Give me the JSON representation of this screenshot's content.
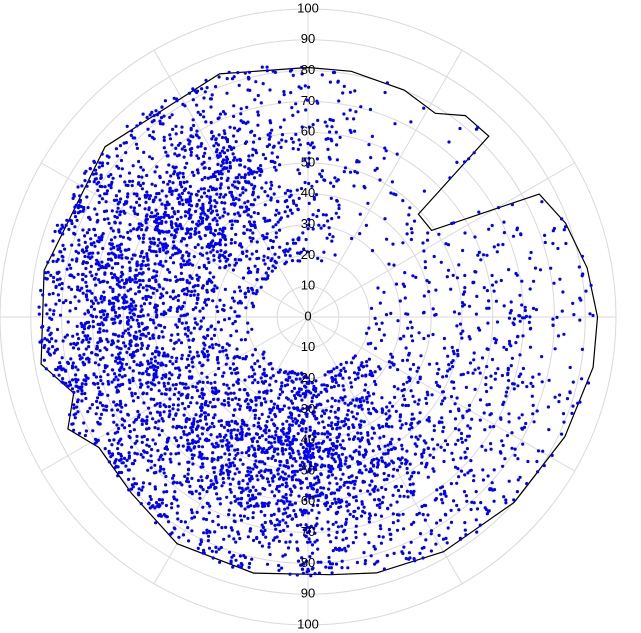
{
  "chart_data": {
    "type": "scatter",
    "coordinate_system": "polar",
    "radial_axis": {
      "range": [
        0,
        100
      ],
      "tick_step": 10,
      "tick_labels_upper": [
        "0",
        "10",
        "20",
        "30",
        "40",
        "50",
        "60",
        "70",
        "80",
        "90",
        "100"
      ],
      "tick_labels_lower": [
        "10",
        "20",
        "30",
        "40",
        "50",
        "60",
        "70",
        "80",
        "90",
        "100"
      ]
    },
    "angular_grid_step_deg": 30,
    "grid": true,
    "series": [
      {
        "marker_color": "#0000ff",
        "point_count_estimate": 4800,
        "clusters": [
          {
            "theta_deg": 131,
            "theta_spread_deg": 28,
            "r_center": 52,
            "r_spread": 18,
            "weight": 0.24
          },
          {
            "theta_deg": 172,
            "theta_spread_deg": 24,
            "r_center": 68,
            "r_spread": 14,
            "weight": 0.16
          },
          {
            "theta_deg": 215,
            "theta_spread_deg": 32,
            "r_center": 57,
            "r_spread": 17,
            "weight": 0.22
          },
          {
            "theta_deg": 270,
            "theta_spread_deg": 26,
            "r_center": 48,
            "r_spread": 17,
            "weight": 0.22
          },
          {
            "theta_deg": 325,
            "theta_spread_deg": 38,
            "r_center": 60,
            "r_spread": 20,
            "weight": 0.16
          }
        ]
      }
    ],
    "outer_envelope": [
      {
        "theta_deg": 0,
        "r": 94
      },
      {
        "theta_deg": 10,
        "r": 92
      },
      {
        "theta_deg": 20,
        "r": 89
      },
      {
        "theta_deg": 28,
        "r": 85
      },
      {
        "theta_deg": 35,
        "r": 49
      },
      {
        "theta_deg": 43,
        "r": 49
      },
      {
        "theta_deg": 45,
        "r": 83
      },
      {
        "theta_deg": 52,
        "r": 83
      },
      {
        "theta_deg": 58,
        "r": 78
      },
      {
        "theta_deg": 67,
        "r": 80
      },
      {
        "theta_deg": 80,
        "r": 81
      },
      {
        "theta_deg": 90,
        "r": 81
      },
      {
        "theta_deg": 110,
        "r": 84
      },
      {
        "theta_deg": 140,
        "r": 86
      },
      {
        "theta_deg": 170,
        "r": 87
      },
      {
        "theta_deg": 190,
        "r": 88
      },
      {
        "theta_deg": 198,
        "r": 80
      },
      {
        "theta_deg": 205,
        "r": 86
      },
      {
        "theta_deg": 212,
        "r": 80
      },
      {
        "theta_deg": 225,
        "r": 81
      },
      {
        "theta_deg": 240,
        "r": 85
      },
      {
        "theta_deg": 258,
        "r": 85
      },
      {
        "theta_deg": 275,
        "r": 84
      },
      {
        "theta_deg": 285,
        "r": 86
      },
      {
        "theta_deg": 300,
        "r": 88
      },
      {
        "theta_deg": 318,
        "r": 90
      },
      {
        "theta_deg": 335,
        "r": 92
      },
      {
        "theta_deg": 350,
        "r": 94
      },
      {
        "theta_deg": 360,
        "r": 94
      }
    ]
  }
}
